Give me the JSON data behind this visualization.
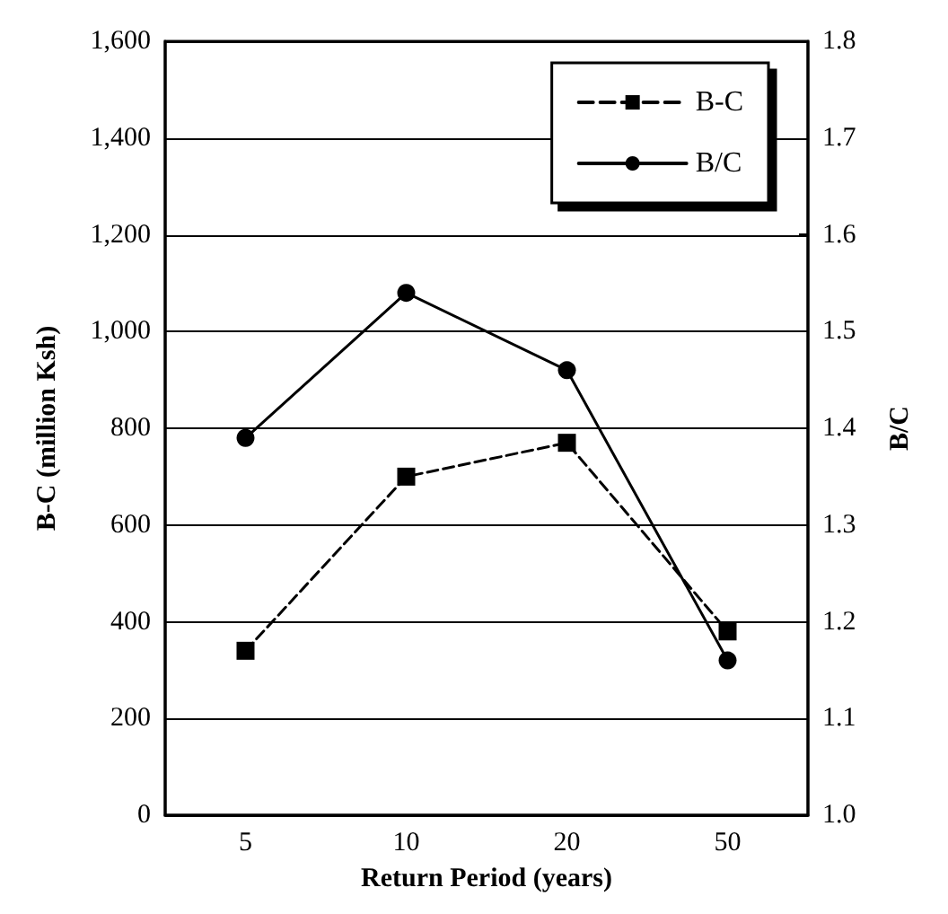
{
  "chart_data": {
    "type": "line",
    "xlabel": "Return Period (years)",
    "ylabel": "B-C (million Ksh)",
    "y2label": "B/C",
    "categories": [
      "5",
      "10",
      "20",
      "50"
    ],
    "series": [
      {
        "name": "B-C",
        "color": "#000000",
        "values": [
          340,
          700,
          770,
          380
        ],
        "marker": "square",
        "line_style": "dashed"
      },
      {
        "name": "B/C",
        "color": "#000000",
        "values": [
          1.39,
          1.54,
          1.46,
          1.16
        ],
        "marker": "circle",
        "line_style": "solid",
        "axis": "y2"
      }
    ],
    "ylim": [
      0,
      1600
    ],
    "yticks": [
      0,
      200,
      400,
      600,
      800,
      {
        "value": 1000,
        "label": "1,000"
      },
      {
        "value": 1200,
        "label": "1,200"
      },
      {
        "value": 1400,
        "label": "1,400"
      },
      {
        "value": 1600,
        "label": "1,600"
      }
    ],
    "y2lim": [
      1.0,
      1.8
    ],
    "y2ticks": [
      {
        "value": 1.0,
        "label": "1.0"
      },
      1.1,
      1.2,
      1.3,
      1.4,
      1.5,
      1.6,
      1.7,
      1.8
    ],
    "grid": "y",
    "legend": "top right"
  }
}
